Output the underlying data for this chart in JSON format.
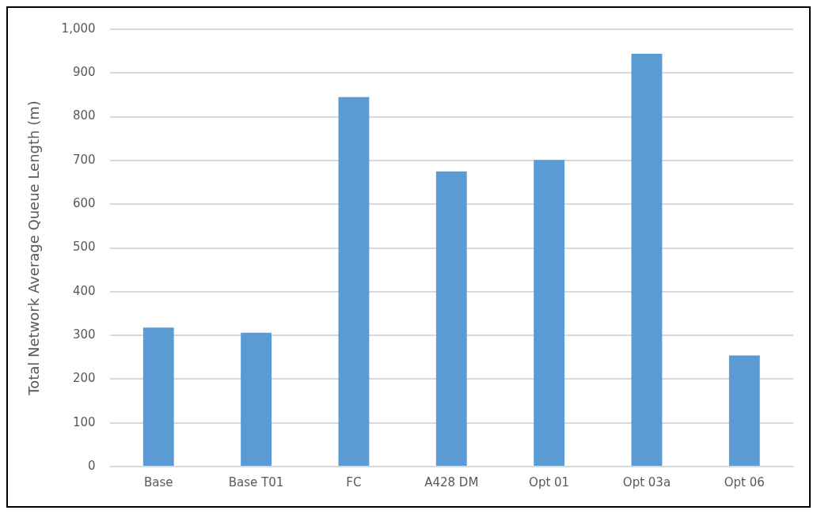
{
  "chart_data": {
    "type": "bar",
    "ylabel": "Total Network Average Queue Length (m)",
    "categories": [
      "Base",
      "Base T01",
      "FC",
      "A428 DM",
      "Opt 01",
      "Opt 03a",
      "Opt 06"
    ],
    "values": [
      318,
      306,
      845,
      675,
      701,
      944,
      254
    ],
    "color": "#5b9bd5",
    "ylim": [
      0,
      1000
    ],
    "yticks": [
      0,
      100,
      200,
      300,
      400,
      500,
      600,
      700,
      800,
      900,
      {
        "value": 1000,
        "label": "1,000"
      }
    ],
    "grid": "y",
    "legend": false
  }
}
